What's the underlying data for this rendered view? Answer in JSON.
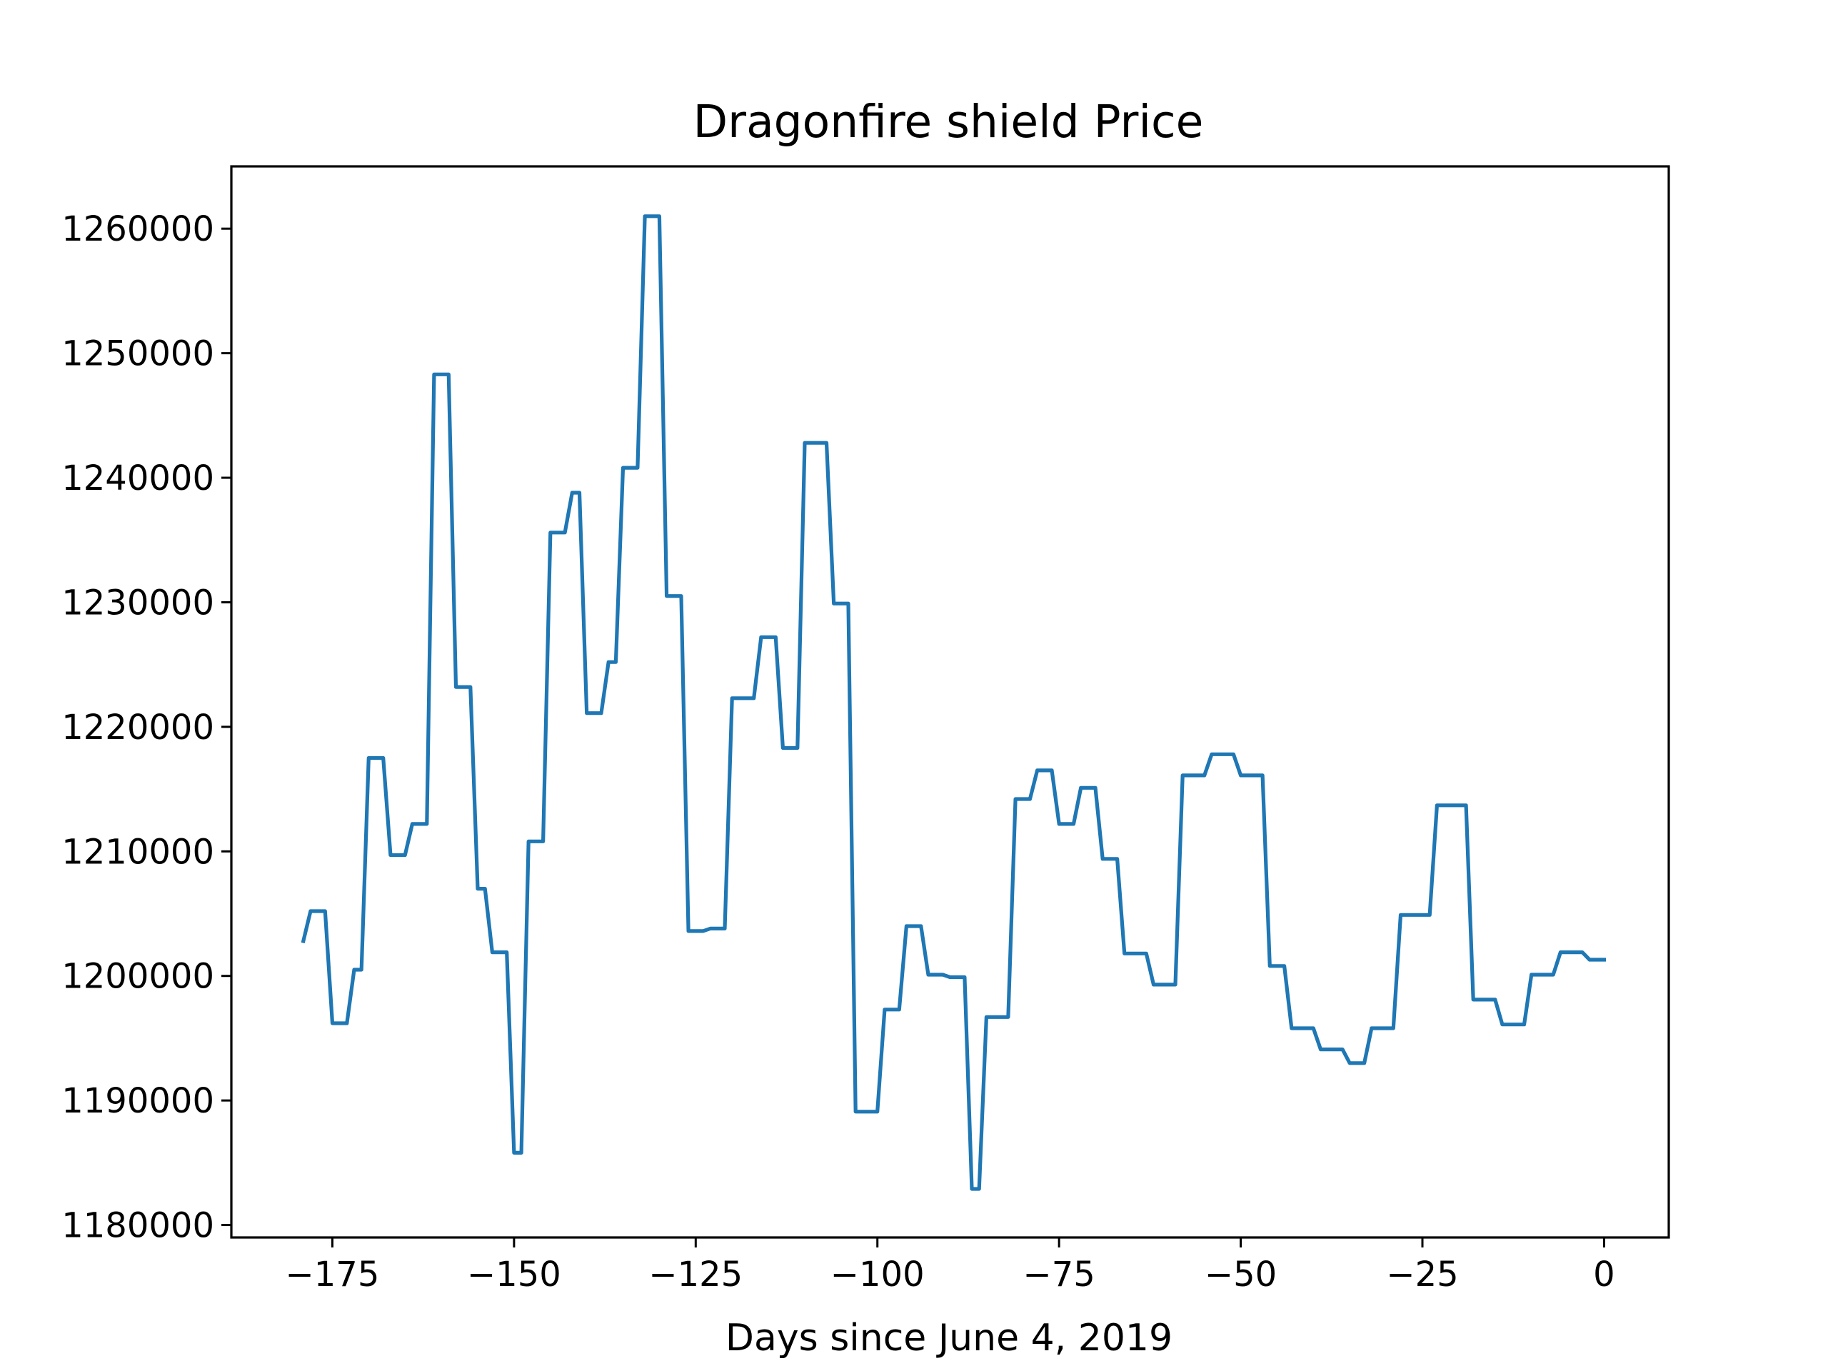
{
  "chart_data": {
    "type": "line",
    "title": "Dragonfire shield Price",
    "xlabel": "Days since June 4, 2019",
    "ylabel": "",
    "xlim": [
      -188.9,
      8.9
    ],
    "ylim": [
      1179000,
      1265000
    ],
    "xticks": [
      -175,
      -150,
      -125,
      -100,
      -75,
      -50,
      -25,
      0
    ],
    "xtick_labels": [
      "−175",
      "−150",
      "−125",
      "−100",
      "−75",
      "−50",
      "−25",
      "0"
    ],
    "yticks": [
      1180000,
      1190000,
      1200000,
      1210000,
      1220000,
      1230000,
      1240000,
      1250000,
      1260000
    ],
    "ytick_labels": [
      "1180000",
      "1190000",
      "1200000",
      "1210000",
      "1220000",
      "1230000",
      "1240000",
      "1250000",
      "1260000"
    ],
    "grid": false,
    "series": [
      {
        "color": "#1f77b4",
        "x": [
          -179,
          -178,
          -177,
          -176,
          -175,
          -174,
          -173,
          -172,
          -171,
          -170,
          -169,
          -168,
          -167,
          -166,
          -165,
          -164,
          -163,
          -162,
          -161,
          -160,
          -159,
          -158,
          -157,
          -156,
          -155,
          -154,
          -153,
          -152,
          -151,
          -150,
          -149,
          -148,
          -147,
          -146,
          -145,
          -144,
          -143,
          -142,
          -141,
          -140,
          -139,
          -138,
          -137,
          -136,
          -135,
          -134,
          -133,
          -132,
          -131,
          -130,
          -129,
          -128,
          -127,
          -126,
          -125,
          -124,
          -123,
          -122,
          -121,
          -120,
          -119,
          -118,
          -117,
          -116,
          -115,
          -114,
          -113,
          -112,
          -111,
          -110,
          -109,
          -108,
          -107,
          -106,
          -105,
          -104,
          -103,
          -102,
          -101,
          -100,
          -99,
          -98,
          -97,
          -96,
          -95,
          -94,
          -93,
          -92,
          -91,
          -90,
          -89,
          -88,
          -87,
          -86,
          -85,
          -84,
          -83,
          -82,
          -81,
          -80,
          -79,
          -78,
          -77,
          -76,
          -75,
          -74,
          -73,
          -72,
          -71,
          -70,
          -69,
          -68,
          -67,
          -66,
          -65,
          -64,
          -63,
          -62,
          -61,
          -60,
          -59,
          -58,
          -57,
          -56,
          -55,
          -54,
          -53,
          -52,
          -51,
          -50,
          -49,
          -48,
          -47,
          -46,
          -45,
          -44,
          -43,
          -42,
          -41,
          -40,
          -39,
          -38,
          -37,
          -36,
          -35,
          -34,
          -33,
          -32,
          -31,
          -30,
          -29,
          -28,
          -27,
          -26,
          -25,
          -24,
          -23,
          -22,
          -21,
          -20,
          -19,
          -18,
          -17,
          -16,
          -15,
          -14,
          -13,
          -12,
          -11,
          -10,
          -9,
          -8,
          -7,
          -6,
          -5,
          -4,
          -3,
          -2,
          -1,
          0
        ],
        "y": [
          1202800,
          1205200,
          1205200,
          1205200,
          1196200,
          1196200,
          1196200,
          1200500,
          1200500,
          1217500,
          1217500,
          1217500,
          1209700,
          1209700,
          1209700,
          1212200,
          1212200,
          1212200,
          1248300,
          1248300,
          1248300,
          1223200,
          1223200,
          1223200,
          1207000,
          1207000,
          1201900,
          1201900,
          1201900,
          1185800,
          1185800,
          1210800,
          1210800,
          1210800,
          1235600,
          1235600,
          1235600,
          1238800,
          1238800,
          1221100,
          1221100,
          1221100,
          1225200,
          1225200,
          1240800,
          1240800,
          1240800,
          1261000,
          1261000,
          1261000,
          1230500,
          1230500,
          1230500,
          1203600,
          1203600,
          1203600,
          1203800,
          1203800,
          1203800,
          1222300,
          1222300,
          1222300,
          1222300,
          1227200,
          1227200,
          1227200,
          1218300,
          1218300,
          1218300,
          1242800,
          1242800,
          1242800,
          1242800,
          1229900,
          1229900,
          1229900,
          1189100,
          1189100,
          1189100,
          1189100,
          1197300,
          1197300,
          1197300,
          1204000,
          1204000,
          1204000,
          1200100,
          1200100,
          1200100,
          1199900,
          1199900,
          1199900,
          1182900,
          1182900,
          1196700,
          1196700,
          1196700,
          1196700,
          1214200,
          1214200,
          1214200,
          1216500,
          1216500,
          1216500,
          1212200,
          1212200,
          1212200,
          1215100,
          1215100,
          1215100,
          1209400,
          1209400,
          1209400,
          1201800,
          1201800,
          1201800,
          1201800,
          1199300,
          1199300,
          1199300,
          1199300,
          1216100,
          1216100,
          1216100,
          1216100,
          1217800,
          1217800,
          1217800,
          1217800,
          1216100,
          1216100,
          1216100,
          1216100,
          1200800,
          1200800,
          1200800,
          1195800,
          1195800,
          1195800,
          1195800,
          1194100,
          1194100,
          1194100,
          1194100,
          1193000,
          1193000,
          1193000,
          1195800,
          1195800,
          1195800,
          1195800,
          1204900,
          1204900,
          1204900,
          1204900,
          1204900,
          1213700,
          1213700,
          1213700,
          1213700,
          1213700,
          1198100,
          1198100,
          1198100,
          1198100,
          1196100,
          1196100,
          1196100,
          1196100,
          1200100,
          1200100,
          1200100,
          1200100,
          1201900,
          1201900,
          1201900,
          1201900,
          1201300,
          1201300,
          1201300
        ]
      }
    ]
  }
}
